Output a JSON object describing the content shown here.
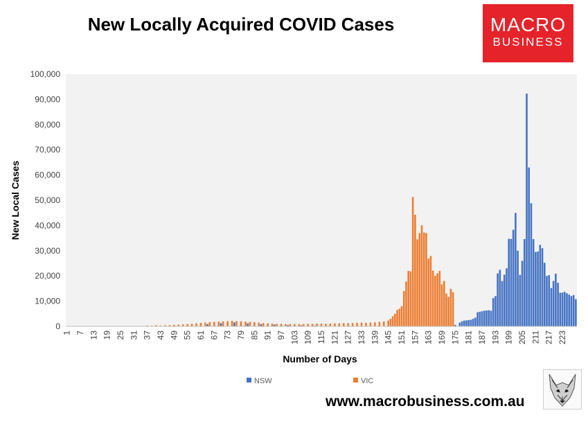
{
  "header": {
    "title": "New Locally Acquired COVID Cases",
    "logo_line1": "MACRO",
    "logo_line2": "BUSINESS"
  },
  "footer": {
    "url": "www.macrobusiness.com.au"
  },
  "colors": {
    "nsw": "#4472c4",
    "vic": "#ed7d31",
    "brand_red": "#e5232a",
    "plot_bg": "#f2f2f2"
  },
  "chart_data": {
    "type": "bar",
    "title": "New Locally Acquired COVID Cases",
    "xlabel": "Number of Days",
    "ylabel": "New Local Cases",
    "ylim": [
      0,
      100000
    ],
    "y_ticks": [
      "0",
      "10,000",
      "20,000",
      "30,000",
      "40,000",
      "50,000",
      "60,000",
      "70,000",
      "80,000",
      "90,000",
      "100,000"
    ],
    "x_ticks": [
      1,
      7,
      13,
      19,
      25,
      31,
      37,
      43,
      49,
      55,
      61,
      67,
      73,
      79,
      85,
      91,
      97,
      103,
      109,
      115,
      121,
      127,
      133,
      139,
      145,
      151,
      157,
      163,
      169,
      175,
      181,
      187,
      193,
      199,
      205,
      211,
      217,
      223
    ],
    "grid": false,
    "legend": "bottom-center",
    "series": [
      {
        "name": "NSW",
        "points": [
          [
            37,
            80
          ],
          [
            43,
            150
          ],
          [
            49,
            200
          ],
          [
            55,
            250
          ],
          [
            61,
            600
          ],
          [
            64,
            900
          ],
          [
            67,
            1100
          ],
          [
            70,
            1300
          ],
          [
            73,
            1500
          ],
          [
            76,
            1600
          ],
          [
            79,
            1400
          ],
          [
            82,
            1200
          ],
          [
            85,
            1100
          ],
          [
            88,
            900
          ],
          [
            91,
            800
          ],
          [
            94,
            700
          ],
          [
            97,
            600
          ],
          [
            100,
            500
          ],
          [
            103,
            500
          ],
          [
            106,
            400
          ],
          [
            109,
            350
          ],
          [
            112,
            300
          ],
          [
            115,
            250
          ],
          [
            118,
            200
          ],
          [
            121,
            150
          ],
          [
            124,
            120
          ],
          [
            127,
            100
          ],
          [
            130,
            80
          ],
          [
            133,
            70
          ],
          [
            136,
            60
          ],
          [
            139,
            50
          ],
          [
            142,
            50
          ],
          [
            145,
            50
          ],
          [
            148,
            50
          ],
          [
            151,
            60
          ],
          [
            154,
            80
          ],
          [
            157,
            100
          ],
          [
            160,
            120
          ],
          [
            163,
            150
          ],
          [
            166,
            200
          ],
          [
            169,
            250
          ],
          [
            171,
            300
          ],
          [
            173,
            400
          ],
          [
            175,
            600
          ],
          [
            177,
            1500
          ],
          [
            178,
            2000
          ],
          [
            179,
            2300
          ],
          [
            180,
            2400
          ],
          [
            181,
            2500
          ],
          [
            182,
            2600
          ],
          [
            183,
            3000
          ],
          [
            184,
            3500
          ],
          [
            185,
            5600
          ],
          [
            186,
            5800
          ],
          [
            187,
            6000
          ],
          [
            188,
            6200
          ],
          [
            189,
            6300
          ],
          [
            190,
            6400
          ],
          [
            191,
            6200
          ],
          [
            192,
            11200
          ],
          [
            193,
            12000
          ],
          [
            194,
            21000
          ],
          [
            195,
            22400
          ],
          [
            196,
            18000
          ],
          [
            197,
            20500
          ],
          [
            198,
            23000
          ],
          [
            199,
            34700
          ],
          [
            200,
            34700
          ],
          [
            201,
            38300
          ],
          [
            202,
            45000
          ],
          [
            203,
            30000
          ],
          [
            204,
            20400
          ],
          [
            205,
            26000
          ],
          [
            206,
            34600
          ],
          [
            207,
            92300
          ],
          [
            208,
            63000
          ],
          [
            209,
            48800
          ],
          [
            210,
            34600
          ],
          [
            211,
            29500
          ],
          [
            212,
            29700
          ],
          [
            213,
            32300
          ],
          [
            214,
            31000
          ],
          [
            215,
            25200
          ],
          [
            216,
            20000
          ],
          [
            217,
            20300
          ],
          [
            218,
            15200
          ],
          [
            219,
            18000
          ],
          [
            220,
            20900
          ],
          [
            221,
            17300
          ],
          [
            222,
            13300
          ],
          [
            223,
            13400
          ],
          [
            224,
            13700
          ],
          [
            225,
            13100
          ],
          [
            226,
            12600
          ],
          [
            227,
            12000
          ],
          [
            228,
            12400
          ],
          [
            229,
            10800
          ]
        ]
      },
      {
        "name": "VIC",
        "points": [
          [
            37,
            300
          ],
          [
            39,
            250
          ],
          [
            41,
            400
          ],
          [
            43,
            300
          ],
          [
            45,
            450
          ],
          [
            47,
            500
          ],
          [
            49,
            600
          ],
          [
            51,
            700
          ],
          [
            53,
            800
          ],
          [
            55,
            900
          ],
          [
            57,
            1000
          ],
          [
            59,
            1200
          ],
          [
            61,
            1400
          ],
          [
            63,
            1500
          ],
          [
            65,
            1700
          ],
          [
            67,
            1800
          ],
          [
            69,
            1900
          ],
          [
            71,
            2000
          ],
          [
            73,
            2100
          ],
          [
            75,
            2200
          ],
          [
            77,
            2100
          ],
          [
            79,
            2000
          ],
          [
            81,
            1900
          ],
          [
            83,
            1800
          ],
          [
            85,
            1700
          ],
          [
            87,
            1500
          ],
          [
            89,
            1300
          ],
          [
            91,
            1200
          ],
          [
            93,
            1100
          ],
          [
            95,
            1000
          ],
          [
            97,
            1000
          ],
          [
            99,
            900
          ],
          [
            101,
            900
          ],
          [
            103,
            900
          ],
          [
            105,
            900
          ],
          [
            107,
            900
          ],
          [
            109,
            1000
          ],
          [
            111,
            1000
          ],
          [
            113,
            1100
          ],
          [
            115,
            1100
          ],
          [
            117,
            1000
          ],
          [
            119,
            1100
          ],
          [
            121,
            1200
          ],
          [
            123,
            1200
          ],
          [
            125,
            1300
          ],
          [
            127,
            1300
          ],
          [
            129,
            1300
          ],
          [
            131,
            1400
          ],
          [
            133,
            1500
          ],
          [
            135,
            1400
          ],
          [
            137,
            1500
          ],
          [
            139,
            1600
          ],
          [
            141,
            1800
          ],
          [
            143,
            2000
          ],
          [
            145,
            2300
          ],
          [
            146,
            3000
          ],
          [
            147,
            4000
          ],
          [
            148,
            5000
          ],
          [
            149,
            6500
          ],
          [
            150,
            7000
          ],
          [
            151,
            8000
          ],
          [
            152,
            14000
          ],
          [
            153,
            17800
          ],
          [
            154,
            22000
          ],
          [
            155,
            21800
          ],
          [
            156,
            51300
          ],
          [
            157,
            44300
          ],
          [
            158,
            34500
          ],
          [
            159,
            37000
          ],
          [
            160,
            40100
          ],
          [
            161,
            37200
          ],
          [
            162,
            37000
          ],
          [
            163,
            26900
          ],
          [
            164,
            27900
          ],
          [
            165,
            22100
          ],
          [
            166,
            20000
          ],
          [
            167,
            21000
          ],
          [
            168,
            22000
          ],
          [
            169,
            16700
          ],
          [
            170,
            18000
          ],
          [
            171,
            13000
          ],
          [
            172,
            11700
          ],
          [
            173,
            14900
          ],
          [
            174,
            13500
          ]
        ]
      }
    ]
  }
}
